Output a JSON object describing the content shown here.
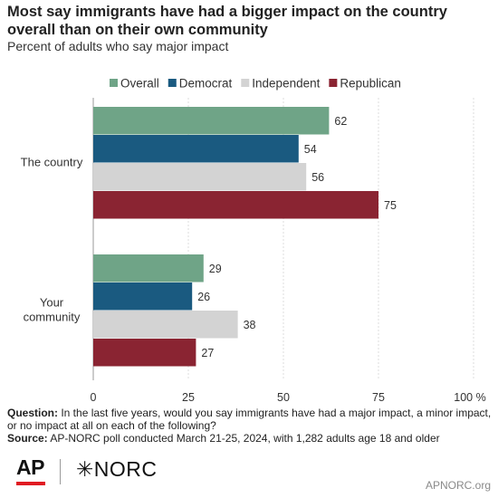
{
  "header": {
    "title": "Most say immigrants have had a bigger impact on the country overall than on their own community",
    "subtitle": "Percent of adults who say major impact"
  },
  "chart_data": {
    "type": "bar",
    "orientation": "horizontal",
    "categories": [
      "The country",
      "Your community"
    ],
    "category_lines": [
      [
        "The country"
      ],
      [
        "Your",
        "community"
      ]
    ],
    "series": [
      {
        "name": "Overall",
        "color": "#6fa487",
        "values": [
          62,
          29
        ]
      },
      {
        "name": "Democrat",
        "color": "#1a5a80",
        "values": [
          54,
          26
        ]
      },
      {
        "name": "Independent",
        "color": "#d3d3d3",
        "values": [
          56,
          38
        ]
      },
      {
        "name": "Republican",
        "color": "#8a2432",
        "values": [
          75,
          27
        ]
      }
    ],
    "xlim": [
      0,
      100
    ],
    "xticks": [
      "0",
      "25",
      "50",
      "75",
      "100 %"
    ],
    "xtick_values": [
      0,
      25,
      50,
      75,
      100
    ],
    "grid": true,
    "legend_position": "top"
  },
  "footer": {
    "question_label": "Question:",
    "question_text": "In the last five years, would you say immigrants have had a major impact, a minor impact, or no impact at all on each of the following?",
    "source_label": "Source:",
    "source_text": "AP-NORC poll conducted March 21-25, 2024, with 1,282 adults age 18 and older",
    "logo_ap": "AP",
    "logo_norc": "NORC",
    "logo_norc_mark": "✳",
    "site": "APNORC.org"
  }
}
